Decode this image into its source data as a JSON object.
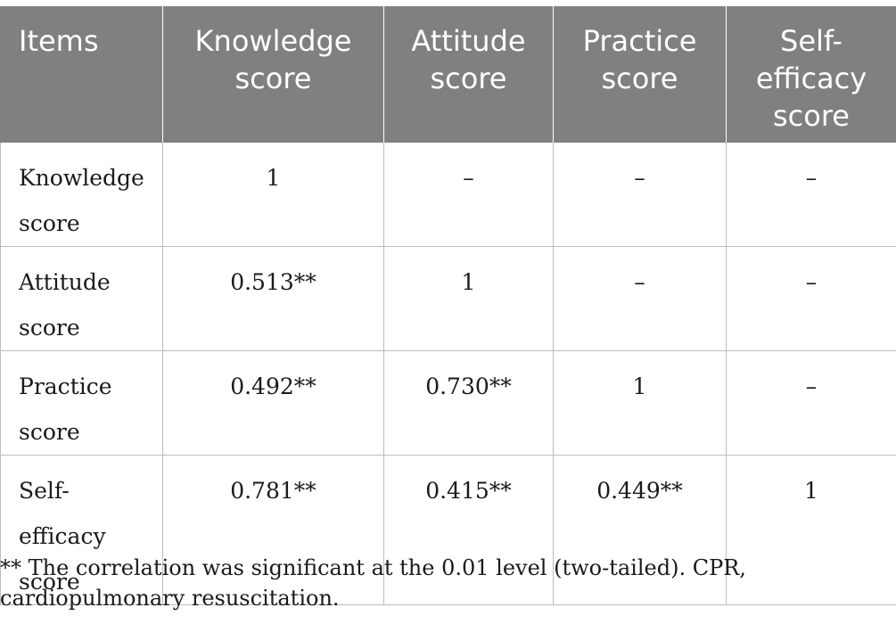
{
  "table": {
    "headers": [
      "Items",
      "Knowledge score",
      "Attitude score",
      "Practice score",
      "Self-efficacy score"
    ],
    "rows": [
      [
        "Knowledge score",
        "1",
        "–",
        "–",
        "–"
      ],
      [
        "Attitude score",
        "0.513**",
        "1",
        "–",
        "–"
      ],
      [
        "Practice score",
        "0.492**",
        "0.730**",
        "1",
        "–"
      ],
      [
        "Self-efficacy score",
        "0.781**",
        "0.415**",
        "0.449**",
        "1"
      ]
    ]
  },
  "footnote": "** The correlation was significant at the 0.01 level (two-tailed). CPR, cardiopulmonary resuscitation."
}
